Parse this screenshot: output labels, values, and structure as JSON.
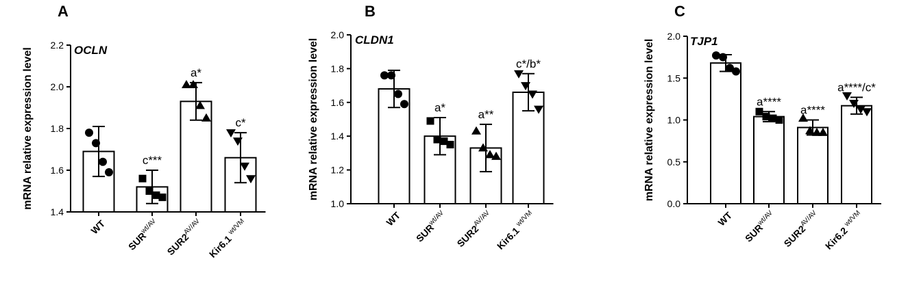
{
  "chart_data": [
    {
      "type": "bar",
      "panel_letter": "A",
      "gene": "OCLN",
      "ylabel": "mRNA relative expression level",
      "ylim": [
        1.4,
        2.2
      ],
      "yticks": [
        "1.4",
        "1.6",
        "1.8",
        "2.0",
        "2.2"
      ],
      "categories": [
        {
          "base": "WT",
          "sup": ""
        },
        {
          "base": "SUR",
          "sup": "wt/AV"
        },
        {
          "base": "SUR2",
          "sup": "AV/AV"
        },
        {
          "base": "Kir6.1 ",
          "sup": "wt/VM"
        }
      ],
      "values": [
        1.69,
        1.52,
        1.93,
        1.66
      ],
      "errors": [
        0.12,
        0.08,
        0.09,
        0.12
      ],
      "markers": [
        "circle",
        "square",
        "triangle-up",
        "triangle-down"
      ],
      "points": [
        [
          1.78,
          1.73,
          1.64,
          1.59
        ],
        [
          1.56,
          1.5,
          1.48,
          1.47
        ],
        [
          2.01,
          2.01,
          1.91,
          1.85
        ],
        [
          1.78,
          1.74,
          1.62,
          1.56
        ]
      ],
      "annotations": [
        "",
        "c***",
        "a*",
        "c*"
      ]
    },
    {
      "type": "bar",
      "panel_letter": "B",
      "gene": "CLDN1",
      "ylabel": "mRNA relative expression level",
      "ylim": [
        1.0,
        2.0
      ],
      "yticks": [
        "1.0",
        "1.2",
        "1.4",
        "1.6",
        "1.8",
        "2.0"
      ],
      "categories": [
        {
          "base": "WT",
          "sup": ""
        },
        {
          "base": "SUR",
          "sup": "wt/AV"
        },
        {
          "base": "SUR2",
          "sup": "AV/AV"
        },
        {
          "base": "Kir6.1 ",
          "sup": "wt/VM"
        }
      ],
      "values": [
        1.68,
        1.4,
        1.33,
        1.66
      ],
      "errors": [
        0.11,
        0.11,
        0.14,
        0.11
      ],
      "markers": [
        "circle",
        "square",
        "triangle-up",
        "triangle-down"
      ],
      "points": [
        [
          1.76,
          1.76,
          1.65,
          1.59
        ],
        [
          1.49,
          1.38,
          1.37,
          1.35
        ],
        [
          1.43,
          1.33,
          1.29,
          1.28
        ],
        [
          1.77,
          1.7,
          1.65,
          1.56
        ]
      ],
      "annotations": [
        "",
        "a*",
        "a**",
        "c*/b*"
      ]
    },
    {
      "type": "bar",
      "panel_letter": "C",
      "gene": "TJP1",
      "ylabel": "mRNA relative expression level",
      "ylim": [
        0.0,
        2.0
      ],
      "yticks": [
        "0.0",
        "0.5",
        "1.0",
        "1.5",
        "2.0"
      ],
      "categories": [
        {
          "base": "WT",
          "sup": ""
        },
        {
          "base": "SUR",
          "sup": "wt/AV"
        },
        {
          "base": "SUR2",
          "sup": "AV/AV"
        },
        {
          "base": "Kir6.2 ",
          "sup": "wt/VM"
        }
      ],
      "values": [
        1.68,
        1.04,
        0.91,
        1.17
      ],
      "errors": [
        0.1,
        0.06,
        0.09,
        0.1
      ],
      "markers": [
        "circle",
        "square",
        "triangle-up",
        "triangle-down"
      ],
      "points": [
        [
          1.77,
          1.75,
          1.62,
          1.58
        ],
        [
          1.1,
          1.04,
          1.02,
          1.0
        ],
        [
          1.02,
          0.87,
          0.85,
          0.85
        ],
        [
          1.29,
          1.2,
          1.13,
          1.1
        ]
      ],
      "annotations": [
        "",
        "a****",
        "a****",
        "a****/c*"
      ]
    }
  ]
}
